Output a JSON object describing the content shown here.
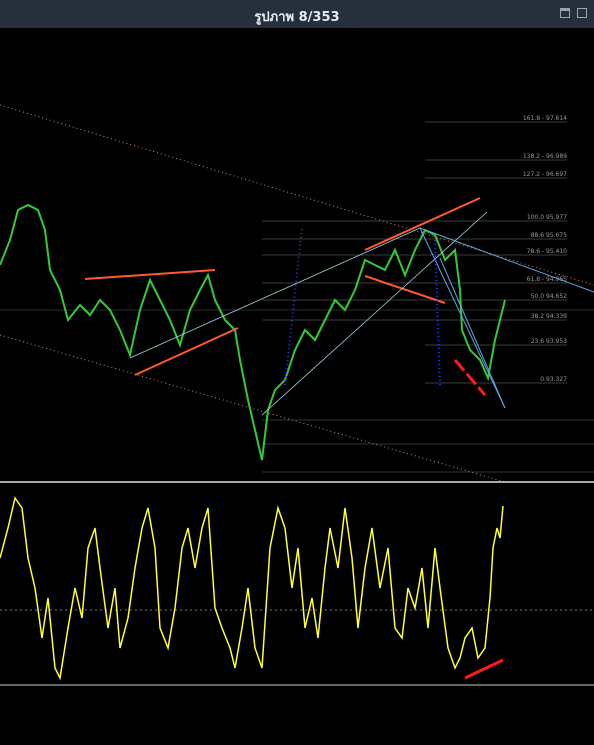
{
  "header": {
    "title": "รูปภาพ 8/353"
  },
  "fib_levels": [
    "161.8 - 97.614",
    "138.2 - 96.989",
    "127.2 - 96.697",
    "100.0 95.977",
    "88.6 95.675",
    "78.6 - 95.410",
    "61.8 - 94.965",
    "50.0 94.652",
    "38.2 94.339",
    "23.6 93.953",
    "0 93.327"
  ]
}
